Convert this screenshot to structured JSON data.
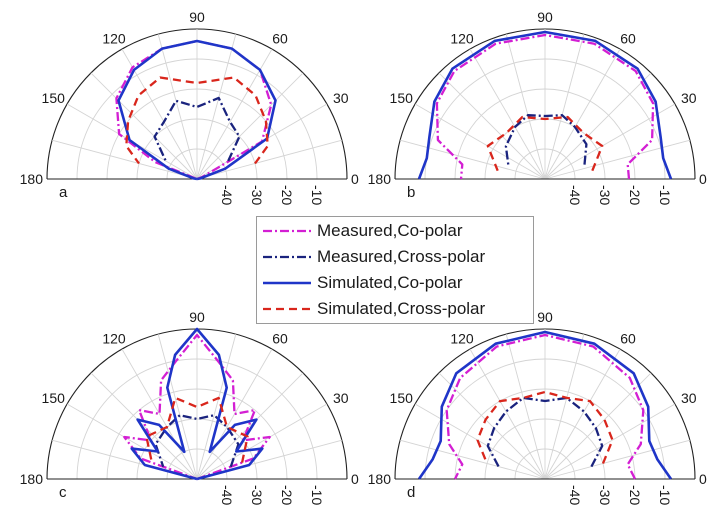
{
  "chart_data": [
    {
      "type": "polar",
      "panel_label": "a",
      "angle_ticks": [
        "180",
        "150",
        "120",
        "90",
        "60",
        "30",
        "0"
      ],
      "radial_ticks": [
        "-40",
        "-30",
        "-20",
        "-10"
      ],
      "rlim": [
        -50,
        0
      ],
      "series": [
        {
          "name": "Measured,Co-polar",
          "values": [
            [
              0,
              -50
            ],
            [
              15,
              -50
            ],
            [
              22,
              -48
            ],
            [
              30,
              -25
            ],
            [
              45,
              -15
            ],
            [
              60,
              -8
            ],
            [
              75,
              -5
            ],
            [
              90,
              -4
            ],
            [
              105,
              -5
            ],
            [
              120,
              -7
            ],
            [
              135,
              -12
            ],
            [
              150,
              -20
            ],
            [
              158,
              -35
            ],
            [
              165,
              -50
            ],
            [
              180,
              -50
            ]
          ]
        },
        {
          "name": "Measured,Cross-polar",
          "values": [
            [
              30,
              -38
            ],
            [
              45,
              -30
            ],
            [
              60,
              -28
            ],
            [
              75,
              -22
            ],
            [
              90,
              -26
            ],
            [
              105,
              -23
            ],
            [
              120,
              -28
            ],
            [
              135,
              -30
            ],
            [
              150,
              -38
            ]
          ]
        },
        {
          "name": "Simulated,Co-polar",
          "values": [
            [
              0,
              -50
            ],
            [
              10,
              -49
            ],
            [
              20,
              -40
            ],
            [
              30,
              -23
            ],
            [
              45,
              -13
            ],
            [
              60,
              -8
            ],
            [
              75,
              -5
            ],
            [
              90,
              -4
            ],
            [
              105,
              -5
            ],
            [
              120,
              -8
            ],
            [
              135,
              -13
            ],
            [
              150,
              -24
            ],
            [
              160,
              -40
            ],
            [
              170,
              -49
            ],
            [
              180,
              -50
            ]
          ]
        },
        {
          "name": "Simulated,Cross-polar",
          "values": [
            [
              15,
              -30
            ],
            [
              25,
              -24
            ],
            [
              40,
              -20
            ],
            [
              55,
              -16
            ],
            [
              70,
              -14
            ],
            [
              90,
              -18
            ],
            [
              110,
              -14
            ],
            [
              125,
              -16
            ],
            [
              140,
              -20
            ],
            [
              155,
              -24
            ],
            [
              165,
              -30
            ]
          ]
        }
      ]
    },
    {
      "type": "polar",
      "panel_label": "b",
      "angle_ticks": [
        "180",
        "150",
        "120",
        "90",
        "60",
        "30",
        "0"
      ],
      "radial_ticks": [
        "-40",
        "-30",
        "-20",
        "-10"
      ],
      "rlim": [
        -50,
        0
      ],
      "series": [
        {
          "name": "Measured,Co-polar",
          "values": [
            [
              0,
              -22
            ],
            [
              10,
              -22
            ],
            [
              20,
              -12
            ],
            [
              35,
              -6
            ],
            [
              50,
              -3
            ],
            [
              70,
              -2
            ],
            [
              90,
              -2
            ],
            [
              110,
              -2
            ],
            [
              130,
              -3
            ],
            [
              145,
              -6
            ],
            [
              160,
              -12
            ],
            [
              170,
              -22
            ],
            [
              180,
              -22
            ]
          ]
        },
        {
          "name": "Measured,Cross-polar",
          "values": [
            [
              20,
              -36
            ],
            [
              40,
              -32
            ],
            [
              60,
              -30
            ],
            [
              75,
              -28
            ],
            [
              90,
              -29
            ],
            [
              105,
              -28
            ],
            [
              120,
              -30
            ],
            [
              140,
              -33
            ],
            [
              160,
              -37
            ]
          ]
        },
        {
          "name": "Simulated,Co-polar",
          "values": [
            [
              0,
              -8
            ],
            [
              10,
              -10
            ],
            [
              20,
              -9
            ],
            [
              35,
              -5
            ],
            [
              50,
              -2
            ],
            [
              70,
              -1
            ],
            [
              90,
              -1
            ],
            [
              110,
              -1
            ],
            [
              130,
              -2
            ],
            [
              145,
              -5
            ],
            [
              160,
              -9
            ],
            [
              170,
              -10
            ],
            [
              180,
              -8
            ]
          ]
        },
        {
          "name": "Simulated,Cross-polar",
          "values": [
            [
              10,
              -34
            ],
            [
              30,
              -28
            ],
            [
              50,
              -30
            ],
            [
              70,
              -28
            ],
            [
              90,
              -30
            ],
            [
              110,
              -28
            ],
            [
              130,
              -30
            ],
            [
              150,
              -28
            ],
            [
              170,
              -34
            ]
          ]
        }
      ]
    },
    {
      "type": "polar",
      "panel_label": "c",
      "angle_ticks": [
        "180",
        "150",
        "120",
        "90",
        "60",
        "30",
        "0"
      ],
      "radial_ticks": [
        "-40",
        "-30",
        "-20",
        "-10"
      ],
      "rlim": [
        -50,
        0
      ],
      "series": [
        {
          "name": "Measured,Co-polar",
          "values": [
            [
              0,
              -50
            ],
            [
              20,
              -30
            ],
            [
              30,
              -22
            ],
            [
              40,
              -30
            ],
            [
              50,
              -20
            ],
            [
              60,
              -25
            ],
            [
              70,
              -15
            ],
            [
              80,
              -10
            ],
            [
              90,
              -2
            ],
            [
              100,
              -10
            ],
            [
              110,
              -15
            ],
            [
              120,
              -25
            ],
            [
              130,
              -20
            ],
            [
              140,
              -30
            ],
            [
              150,
              -22
            ],
            [
              160,
              -30
            ],
            [
              180,
              -50
            ]
          ]
        },
        {
          "name": "Measured,Cross-polar",
          "values": [
            [
              20,
              -38
            ],
            [
              40,
              -32
            ],
            [
              60,
              -30
            ],
            [
              75,
              -28
            ],
            [
              90,
              -30
            ],
            [
              105,
              -28
            ],
            [
              120,
              -30
            ],
            [
              140,
              -32
            ],
            [
              160,
              -38
            ]
          ]
        },
        {
          "name": "Simulated,Co-polar",
          "values": [
            [
              0,
              -50
            ],
            [
              15,
              -32
            ],
            [
              25,
              -26
            ],
            [
              35,
              -34
            ],
            [
              45,
              -22
            ],
            [
              55,
              -28
            ],
            [
              65,
              -40
            ],
            [
              72,
              -18
            ],
            [
              80,
              -8
            ],
            [
              90,
              0
            ],
            [
              100,
              -8
            ],
            [
              108,
              -18
            ],
            [
              115,
              -40
            ],
            [
              125,
              -28
            ],
            [
              135,
              -22
            ],
            [
              145,
              -34
            ],
            [
              155,
              -26
            ],
            [
              165,
              -32
            ],
            [
              180,
              -50
            ]
          ]
        },
        {
          "name": "Simulated,Cross-polar",
          "values": [
            [
              20,
              -34
            ],
            [
              40,
              -28
            ],
            [
              60,
              -30
            ],
            [
              75,
              -22
            ],
            [
              90,
              -26
            ],
            [
              105,
              -22
            ],
            [
              120,
              -30
            ],
            [
              140,
              -28
            ],
            [
              160,
              -34
            ]
          ]
        }
      ]
    },
    {
      "type": "polar",
      "panel_label": "d",
      "angle_ticks": [
        "180",
        "150",
        "120",
        "90",
        "60",
        "30",
        "0"
      ],
      "radial_ticks": [
        "-40",
        "-30",
        "-20",
        "-10"
      ],
      "rlim": [
        -50,
        0
      ],
      "series": [
        {
          "name": "Measured,Co-polar",
          "values": [
            [
              0,
              -20
            ],
            [
              10,
              -22
            ],
            [
              20,
              -16
            ],
            [
              35,
              -10
            ],
            [
              50,
              -6
            ],
            [
              70,
              -3
            ],
            [
              90,
              -2
            ],
            [
              110,
              -3
            ],
            [
              130,
              -6
            ],
            [
              145,
              -10
            ],
            [
              160,
              -16
            ],
            [
              170,
              -22
            ],
            [
              180,
              -20
            ]
          ]
        },
        {
          "name": "Measured,Cross-polar",
          "values": [
            [
              15,
              -34
            ],
            [
              30,
              -28
            ],
            [
              45,
              -26
            ],
            [
              60,
              -24
            ],
            [
              75,
              -22
            ],
            [
              90,
              -24
            ],
            [
              105,
              -22
            ],
            [
              120,
              -24
            ],
            [
              135,
              -26
            ],
            [
              150,
              -28
            ],
            [
              165,
              -34
            ]
          ]
        },
        {
          "name": "Simulated,Co-polar",
          "values": [
            [
              0,
              -8
            ],
            [
              10,
              -12
            ],
            [
              20,
              -13
            ],
            [
              35,
              -8
            ],
            [
              50,
              -4
            ],
            [
              70,
              -2
            ],
            [
              90,
              -1
            ],
            [
              110,
              -2
            ],
            [
              130,
              -4
            ],
            [
              145,
              -8
            ],
            [
              160,
              -13
            ],
            [
              170,
              -12
            ],
            [
              180,
              -8
            ]
          ]
        },
        {
          "name": "Simulated,Cross-polar",
          "values": [
            [
              15,
              -30
            ],
            [
              30,
              -24
            ],
            [
              45,
              -22
            ],
            [
              60,
              -20
            ],
            [
              75,
              -22
            ],
            [
              90,
              -21
            ],
            [
              105,
              -22
            ],
            [
              120,
              -20
            ],
            [
              135,
              -22
            ],
            [
              150,
              -24
            ],
            [
              165,
              -30
            ]
          ]
        }
      ]
    }
  ],
  "legend": {
    "entries": [
      {
        "label": "Measured,Co-polar",
        "color": "#d31fd3",
        "style": "dashdot"
      },
      {
        "label": "Measured,Cross-polar",
        "color": "#1a237e",
        "style": "dashdot"
      },
      {
        "label": "Simulated,Co-polar",
        "color": "#1f35c8",
        "style": "solid"
      },
      {
        "label": "Simulated,Cross-polar",
        "color": "#d9261c",
        "style": "dashed"
      }
    ]
  }
}
